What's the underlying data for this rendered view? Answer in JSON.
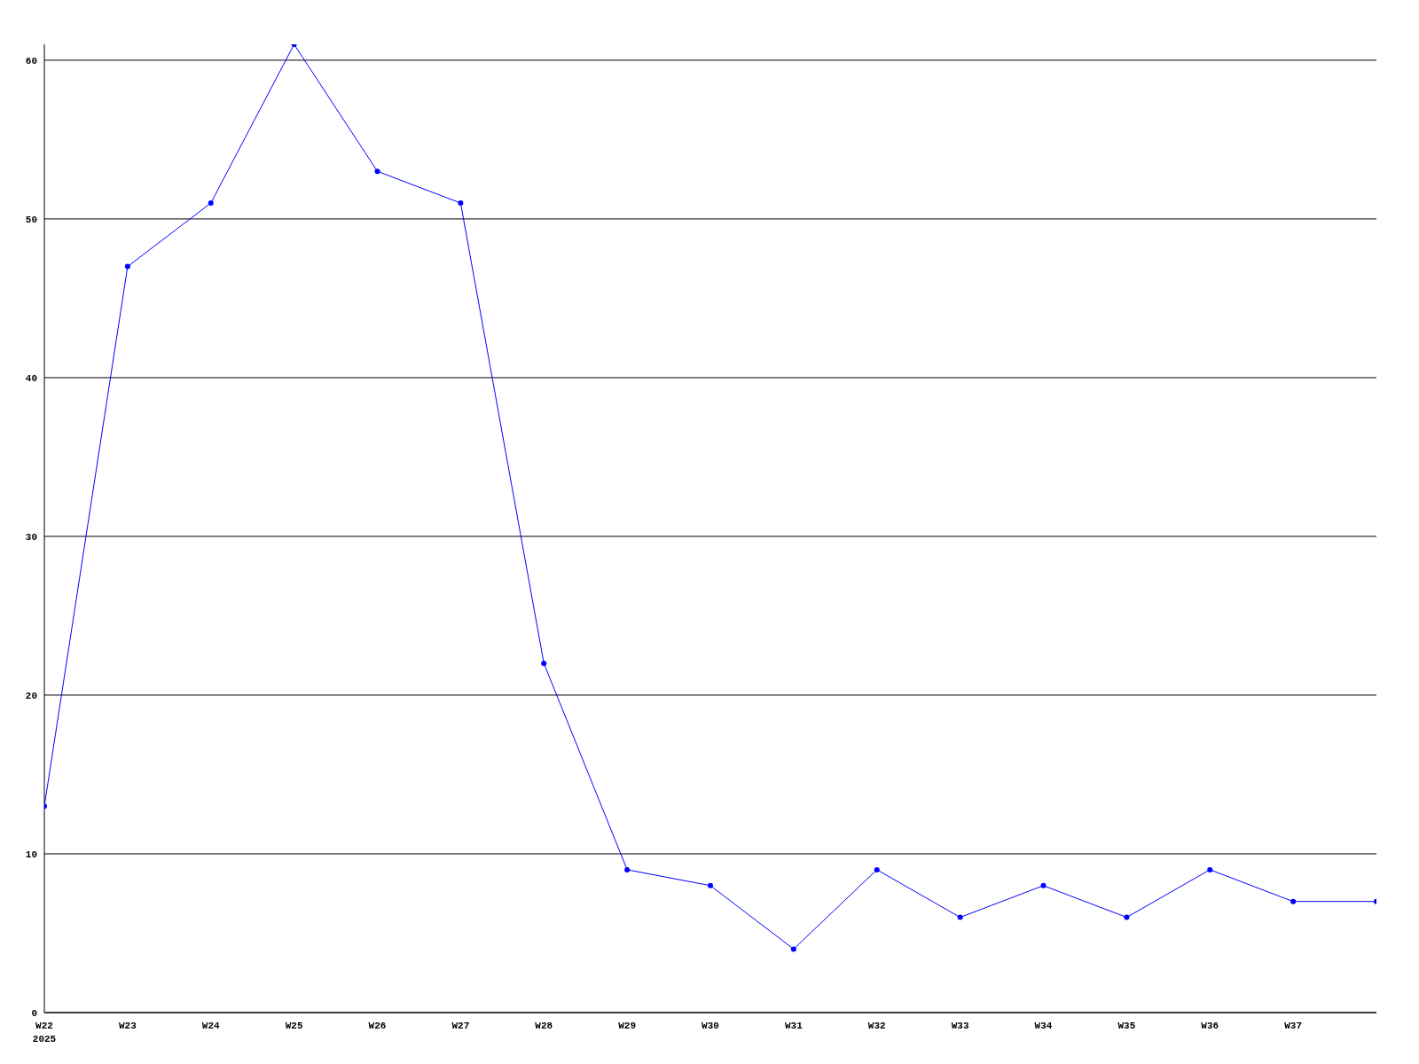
{
  "chart_data": {
    "type": "line",
    "categories": [
      "W22\n2025",
      "W23",
      "W24",
      "W25",
      "W26",
      "W27",
      "W28",
      "W29",
      "W30",
      "W31",
      "W32",
      "W33",
      "W34",
      "W35",
      "W36",
      "W37",
      null
    ],
    "series": [
      {
        "color": "#0000ff",
        "values": [
          13,
          47,
          51,
          61,
          53,
          51,
          22,
          9,
          8,
          4,
          9,
          6,
          8,
          6,
          9,
          7,
          7
        ]
      }
    ],
    "ylim": [
      0,
      61
    ],
    "yticks": [
      0,
      10,
      20,
      30,
      40,
      50,
      60
    ],
    "grid": "y",
    "marker": "circle",
    "line_style": "solid"
  }
}
